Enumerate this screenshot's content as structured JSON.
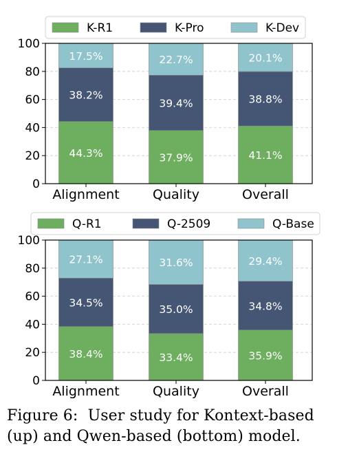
{
  "chart_data": [
    {
      "type": "bar",
      "stacked": true,
      "categories": [
        "Alignment",
        "Quality",
        "Overall"
      ],
      "series": [
        {
          "name": "K-R1",
          "values": [
            44.3,
            37.9,
            41.1
          ],
          "labels": [
            "44.3%",
            "37.9%",
            "41.1%"
          ],
          "color": "#6dae5f"
        },
        {
          "name": "K-Pro",
          "values": [
            38.2,
            39.4,
            38.8
          ],
          "labels": [
            "38.2%",
            "39.4%",
            "38.8%"
          ],
          "color": "#455675"
        },
        {
          "name": "K-Dev",
          "values": [
            17.5,
            22.7,
            20.1
          ],
          "labels": [
            "17.5%",
            "22.7%",
            "20.1%"
          ],
          "color": "#8fc4cc"
        }
      ],
      "yticks": [
        "0",
        "20",
        "40",
        "60",
        "80",
        "100"
      ],
      "ylim": [
        0,
        100
      ],
      "grid": true,
      "legend_position": "top"
    },
    {
      "type": "bar",
      "stacked": true,
      "categories": [
        "Alignment",
        "Quality",
        "Overall"
      ],
      "series": [
        {
          "name": "Q-R1",
          "values": [
            38.4,
            33.4,
            35.9
          ],
          "labels": [
            "38.4%",
            "33.4%",
            "35.9%"
          ],
          "color": "#6dae5f"
        },
        {
          "name": "Q-2509",
          "values": [
            34.5,
            35.0,
            34.8
          ],
          "labels": [
            "34.5%",
            "35.0%",
            "34.8%"
          ],
          "color": "#455675"
        },
        {
          "name": "Q-Base",
          "values": [
            27.1,
            31.6,
            29.4
          ],
          "labels": [
            "27.1%",
            "31.6%",
            "29.4%"
          ],
          "color": "#8fc4cc"
        }
      ],
      "yticks": [
        "0",
        "20",
        "40",
        "60",
        "80",
        "100"
      ],
      "ylim": [
        0,
        100
      ],
      "grid": true,
      "legend_position": "top"
    }
  ],
  "caption": {
    "line1": "Figure 6:  User study for Kontext-based",
    "line2": "(up) and Qwen-based (bottom) model."
  }
}
